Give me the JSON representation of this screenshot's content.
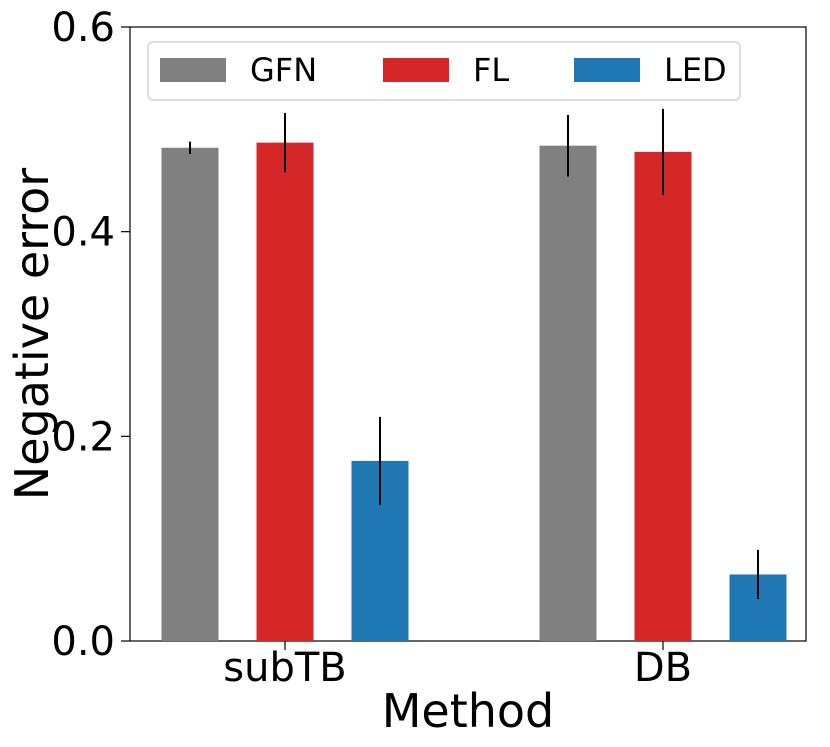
{
  "chart_data": {
    "type": "bar",
    "title": "",
    "xlabel": "Method",
    "ylabel": "Negative error",
    "categories": [
      "subTB",
      "DB"
    ],
    "ylim": [
      0.0,
      0.6
    ],
    "yticks": [
      "0.0",
      "0.2",
      "0.4",
      "0.6"
    ],
    "grid": false,
    "legend_position": "top",
    "series": [
      {
        "name": "GFN",
        "color": "#808080",
        "values": [
          0.482,
          0.484
        ],
        "errors": [
          0.006,
          0.03
        ]
      },
      {
        "name": "FL",
        "color": "#d62728",
        "values": [
          0.487,
          0.478
        ],
        "errors": [
          0.029,
          0.042
        ]
      },
      {
        "name": "LED",
        "color": "#1f77b4",
        "values": [
          0.176,
          0.065
        ],
        "errors": [
          0.043,
          0.024
        ]
      }
    ]
  }
}
